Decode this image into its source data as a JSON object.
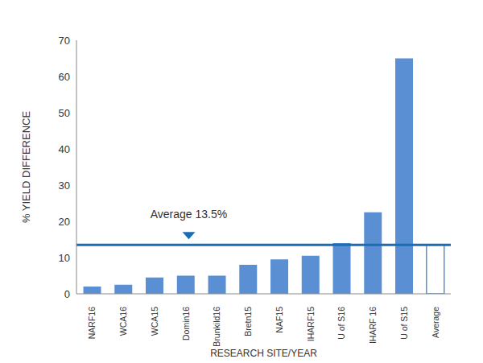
{
  "chart_data": {
    "type": "bar",
    "categories": [
      "NARF16",
      "WCA16",
      "WCA15",
      "Domin16",
      "Brunkild16",
      "Bretn15",
      "NAF15",
      "IHARF15",
      "U of S16",
      "IHARF 16",
      "U of S15",
      "Average"
    ],
    "values": [
      2,
      2.5,
      4.5,
      5,
      5,
      8,
      9.5,
      10.5,
      14,
      22.5,
      65,
      13.5
    ],
    "color": "#5b8fd3",
    "x_label": "RESEARCH SITE/YEAR",
    "y_label": "% YIELD DIFFERENCE",
    "ylim": [
      0,
      70
    ],
    "yticks": [
      0,
      10,
      20,
      30,
      40,
      50,
      60,
      70
    ],
    "grid": false,
    "annotations": [
      {
        "text": "Average 13.5%",
        "value": 13.5,
        "color": "#1b6db3"
      }
    ]
  }
}
